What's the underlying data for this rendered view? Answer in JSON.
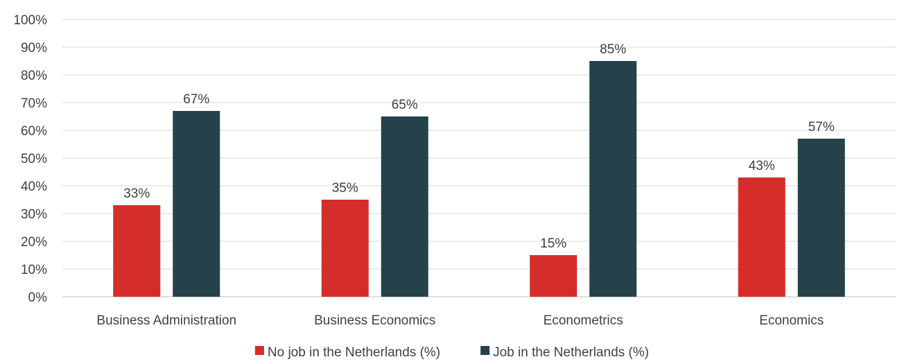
{
  "chart_data": {
    "type": "bar",
    "categories": [
      "Business Administration",
      "Business Economics",
      "Econometrics",
      "Economics"
    ],
    "series": [
      {
        "name": "No job in the Netherlands (%)",
        "color": "#d42d2a",
        "values": [
          33,
          35,
          15,
          43
        ]
      },
      {
        "name": "Job in the Netherlands (%)",
        "color": "#25414a",
        "values": [
          67,
          65,
          85,
          57
        ]
      }
    ],
    "data_labels": [
      [
        "33%",
        "35%",
        "15%",
        "43%"
      ],
      [
        "67%",
        "65%",
        "85%",
        "57%"
      ]
    ],
    "yticks": [
      "0%",
      "10%",
      "20%",
      "30%",
      "40%",
      "50%",
      "60%",
      "70%",
      "80%",
      "90%",
      "100%"
    ],
    "ylim": [
      0,
      100
    ],
    "grid": true,
    "legend_position": "bottom",
    "title": "",
    "xlabel": "",
    "ylabel": ""
  }
}
